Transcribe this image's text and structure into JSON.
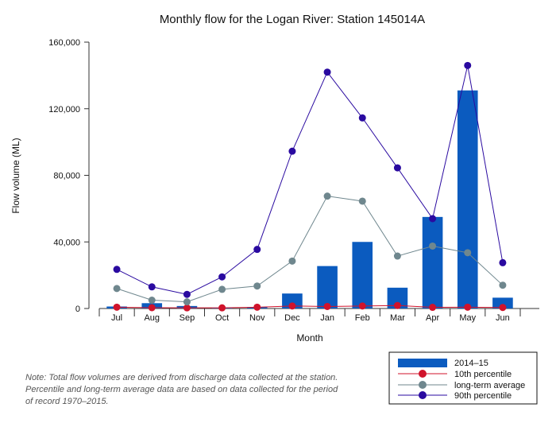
{
  "note": "Note: Total flow volumes are derived from discharge data collected at the station. Percentile and long-term average data are based on data collected for the period of record 1970–2015.",
  "colors": {
    "bar": "#0b5bbf",
    "p10": "#d0132b",
    "avg": "#6f878e",
    "p90": "#2a0aa0",
    "axis": "#333333",
    "legend_border": "#111111"
  },
  "chart_data": {
    "type": "bar",
    "title": "Monthly flow for the Logan River: Station 145014A",
    "xlabel": "Month",
    "ylabel": "Flow volume (ML)",
    "ylim": [
      0,
      160000
    ],
    "yticks": [
      0,
      40000,
      80000,
      120000,
      160000
    ],
    "ytick_labels": [
      "0",
      "40,000",
      "80,000",
      "120,000",
      "160,000"
    ],
    "categories": [
      "Jul",
      "Aug",
      "Sep",
      "Oct",
      "Nov",
      "Dec",
      "Jan",
      "Feb",
      "Mar",
      "Apr",
      "May",
      "Jun"
    ],
    "legend_position": "bottom-right",
    "series": [
      {
        "name": "2014–15",
        "kind": "bar",
        "color_key": "bar",
        "values": [
          1200,
          3200,
          1500,
          300,
          800,
          9000,
          25500,
          40000,
          12500,
          55000,
          131000,
          6500
        ]
      },
      {
        "name": "10th percentile",
        "kind": "line",
        "color_key": "p10",
        "values": [
          800,
          500,
          400,
          400,
          800,
          1500,
          1200,
          1500,
          1800,
          700,
          800,
          600
        ]
      },
      {
        "name": "long-term average",
        "kind": "line",
        "color_key": "avg",
        "values": [
          12000,
          5000,
          4000,
          11500,
          13500,
          28500,
          67500,
          64500,
          31500,
          37500,
          33500,
          14000
        ]
      },
      {
        "name": "90th percentile",
        "kind": "line",
        "color_key": "p90",
        "values": [
          23500,
          13000,
          8500,
          19000,
          35500,
          94500,
          142000,
          114500,
          84500,
          54000,
          146000,
          27500
        ]
      }
    ]
  }
}
